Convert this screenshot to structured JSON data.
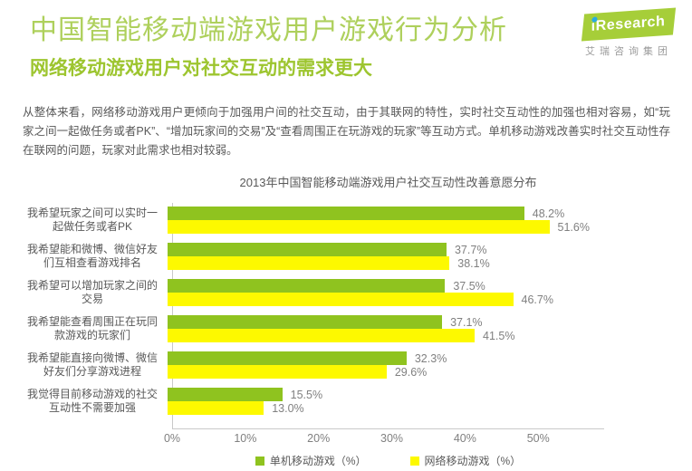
{
  "page": {
    "title": "中国智能移动端游戏用户游戏行为分析",
    "subtitle": "网络移动游戏用户对社交互动的需求更大",
    "intro": "从整体来看，网络移动游戏用户更倾向于加强用户间的社交互动，由于其联网的特性，实时社交互动性的加强也相对容易，如“玩家之间一起做任务或者PK”、“增加玩家间的交易”及“查看周围正在玩游戏的玩家”等互动方式。单机移动游戏改善实时社交互动性存在联网的问题，玩家对此需求也相对较弱。"
  },
  "logo": {
    "brand": "iResearch",
    "caption": "艾瑞咨询集团"
  },
  "chart_data": {
    "type": "bar",
    "orientation": "horizontal",
    "title": "2013年中国智能移动端游戏用户社交互动性改善意愿分布",
    "categories": [
      "我希望玩家之间可以实时一起做任务或者PK",
      "我希望能和微博、微信好友们互相查看游戏排名",
      "我希望可以增加玩家之间的交易",
      "我希望能查看周围正在玩同款游戏的玩家们",
      "我希望能直接向微博、微信好友们分享游戏进程",
      "我觉得目前移动游戏的社交互动性不需要加强"
    ],
    "series": [
      {
        "name": "单机移动游戏（%）",
        "color": "#8fc31f",
        "values": [
          48.2,
          37.7,
          37.5,
          37.1,
          32.3,
          15.5
        ]
      },
      {
        "name": "网络移动游戏（%）",
        "color": "#fdf900",
        "values": [
          51.6,
          38.1,
          46.7,
          41.5,
          29.6,
          13.0
        ]
      }
    ],
    "x_ticks": [
      "0%",
      "10%",
      "20%",
      "30%",
      "40%",
      "50%"
    ],
    "xlim": [
      0,
      59
    ],
    "tick_step_percent": 10,
    "value_suffix": "%",
    "grid": false,
    "legend_position": "bottom"
  },
  "colors": {
    "title_green": "#aed05c",
    "subtitle_green": "#9dc52f",
    "body_text": "#595959",
    "muted_text": "#808080",
    "axis_line": "#c9c9c9",
    "logo_green": "#a6ce39",
    "logo_dot": "#29abe2",
    "logo_caption": "#9b9b9b"
  }
}
